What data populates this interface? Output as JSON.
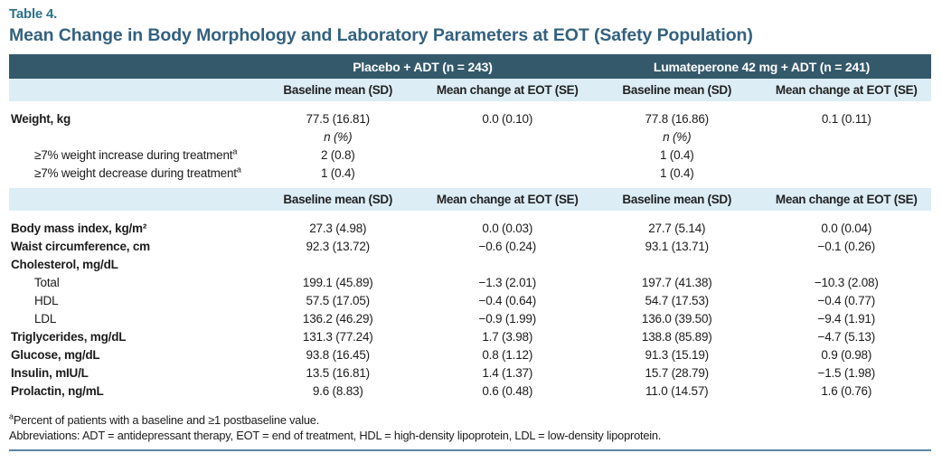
{
  "table": {
    "eyebrow": "Table 4.",
    "title": "Mean Change in Body Morphology and Laboratory Parameters at EOT (Safety Population)",
    "group_headers": [
      "Placebo + ADT (n = 243)",
      "Lumateperone 42 mg + ADT (n = 241)"
    ],
    "col_headers": [
      "Baseline mean (SD)",
      "Mean change at EOT (SE)",
      "Baseline mean (SD)",
      "Mean change at EOT (SE)"
    ],
    "body": [
      {
        "kind": "subheader"
      },
      {
        "kind": "data",
        "label": "Weight, kg",
        "bold": true,
        "cells": [
          "77.5 (16.81)",
          "0.0 (0.10)",
          "77.8 (16.86)",
          "0.1 (0.11)"
        ]
      },
      {
        "kind": "data",
        "label": "",
        "italic": true,
        "cells": [
          "n (%)",
          "",
          "n (%)",
          ""
        ]
      },
      {
        "kind": "data",
        "label": "≥7% weight increase during treatment",
        "sup": "a",
        "indent": true,
        "cells": [
          "2 (0.8)",
          "",
          "1 (0.4)",
          ""
        ]
      },
      {
        "kind": "data",
        "label": "≥7% weight decrease during treatment",
        "sup": "a",
        "indent": true,
        "cells": [
          "1 (0.4)",
          "",
          "1 (0.4)",
          ""
        ]
      },
      {
        "kind": "subheader"
      },
      {
        "kind": "data",
        "label": "Body mass index, kg/m²",
        "bold": true,
        "cells": [
          "27.3 (4.98)",
          "0.0 (0.03)",
          "27.7 (5.14)",
          "0.0 (0.04)"
        ]
      },
      {
        "kind": "data",
        "label": "Waist circumference, cm",
        "bold": true,
        "cells": [
          "92.3 (13.72)",
          "−0.6 (0.24)",
          "93.1 (13.71)",
          "−0.1 (0.26)"
        ]
      },
      {
        "kind": "data",
        "label": "Cholesterol, mg/dL",
        "bold": true,
        "cells": [
          "",
          "",
          "",
          ""
        ]
      },
      {
        "kind": "data",
        "label": "Total",
        "indent": true,
        "cells": [
          "199.1 (45.89)",
          "−1.3 (2.01)",
          "197.7 (41.38)",
          "−10.3 (2.08)"
        ]
      },
      {
        "kind": "data",
        "label": "HDL",
        "indent": true,
        "cells": [
          "57.5 (17.05)",
          "−0.4 (0.64)",
          "54.7 (17.53)",
          "−0.4 (0.77)"
        ]
      },
      {
        "kind": "data",
        "label": "LDL",
        "indent": true,
        "cells": [
          "136.2 (46.29)",
          "−0.9 (1.99)",
          "136.0 (39.50)",
          "−9.4 (1.91)"
        ]
      },
      {
        "kind": "data",
        "label": "Triglycerides, mg/dL",
        "bold": true,
        "cells": [
          "131.3 (77.24)",
          "1.7 (3.98)",
          "138.8 (85.89)",
          "−4.7 (5.13)"
        ]
      },
      {
        "kind": "data",
        "label": "Glucose, mg/dL",
        "bold": true,
        "cells": [
          "93.8 (16.45)",
          "0.8 (1.12)",
          "91.3 (15.19)",
          "0.9 (0.98)"
        ]
      },
      {
        "kind": "data",
        "label": "Insulin, mIU/L",
        "bold": true,
        "cells": [
          "13.5 (16.81)",
          "1.4 (1.37)",
          "15.7 (28.79)",
          "−1.5 (1.98)"
        ]
      },
      {
        "kind": "data",
        "label": "Prolactin, ng/mL",
        "bold": true,
        "cells": [
          "9.6 (8.83)",
          "0.6 (0.48)",
          "11.0 (14.57)",
          "1.6 (0.76)"
        ]
      }
    ],
    "footnotes": [
      {
        "marker": "a",
        "text": "Percent of patients with a baseline and ≥1 postbaseline value."
      },
      {
        "marker": "",
        "text": "Abbreviations: ADT = antidepressant therapy, EOT = end of treatment, HDL = high-density lipoprotein, LDL = low-density lipoprotein."
      }
    ]
  },
  "colors": {
    "header_bar": "#34596b",
    "subheader_bg": "#dcedf6",
    "eyebrow": "#2d7289",
    "title": "#33617e",
    "bottom_rule": "#5b86a2",
    "text": "#1c1c1c"
  }
}
